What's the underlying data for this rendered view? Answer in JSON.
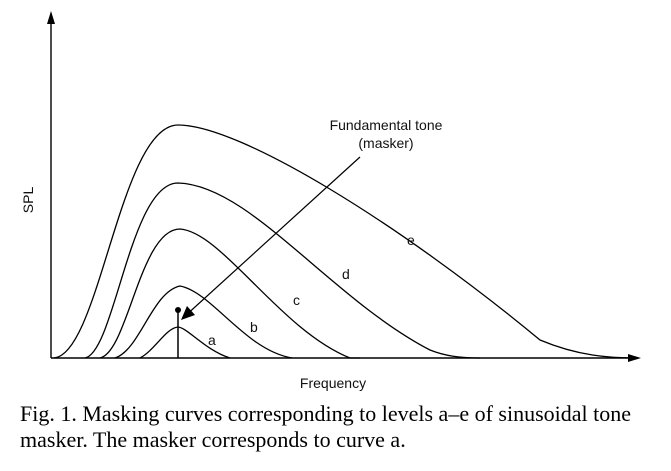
{
  "axes": {
    "ylabel": "SPL",
    "xlabel": "Frequency"
  },
  "annotation": {
    "line1": "Fundamental tone",
    "line2": "(masker)"
  },
  "curves": [
    {
      "label": "a",
      "peak_level": 1
    },
    {
      "label": "b",
      "peak_level": 2
    },
    {
      "label": "c",
      "peak_level": 3
    },
    {
      "label": "d",
      "peak_level": 4
    },
    {
      "label": "e",
      "peak_level": 5
    }
  ],
  "caption": {
    "text": "Fig. 1. Masking curves corresponding to levels a–e of sinusoidal tone masker. The masker corresponds to curve a."
  }
}
